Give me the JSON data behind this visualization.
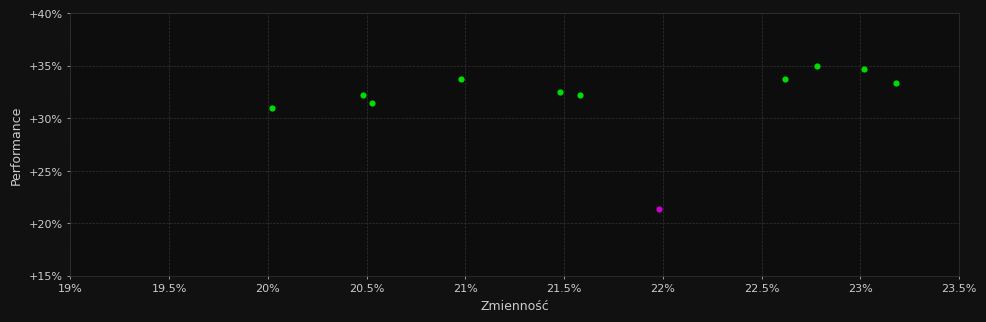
{
  "background_color": "#111111",
  "plot_bg_color": "#0d0d0d",
  "grid_color": "#333333",
  "text_color": "#cccccc",
  "xlabel": "Zmienność",
  "ylabel": "Performance",
  "xlim": [
    0.19,
    0.235
  ],
  "ylim": [
    0.15,
    0.4
  ],
  "xticks": [
    0.19,
    0.195,
    0.2,
    0.205,
    0.21,
    0.215,
    0.22,
    0.225,
    0.23,
    0.235
  ],
  "xtick_labels": [
    "19%",
    "19.5%",
    "20%",
    "20.5%",
    "21%",
    "21.5%",
    "22%",
    "22.5%",
    "23%",
    "23.5%"
  ],
  "yticks": [
    0.15,
    0.2,
    0.25,
    0.3,
    0.35,
    0.4
  ],
  "ytick_labels": [
    "+15%",
    "+20%",
    "+25%",
    "+30%",
    "+35%",
    "+40%"
  ],
  "green_points": [
    [
      0.2002,
      0.31
    ],
    [
      0.2048,
      0.322
    ],
    [
      0.2053,
      0.315
    ],
    [
      0.2098,
      0.337
    ],
    [
      0.2148,
      0.325
    ],
    [
      0.2158,
      0.322
    ],
    [
      0.2262,
      0.337
    ],
    [
      0.2278,
      0.35
    ],
    [
      0.2302,
      0.347
    ],
    [
      0.2318,
      0.334
    ]
  ],
  "magenta_points": [
    [
      0.2198,
      0.214
    ]
  ],
  "green_color": "#00dd00",
  "magenta_color": "#cc00cc",
  "marker_size": 20
}
